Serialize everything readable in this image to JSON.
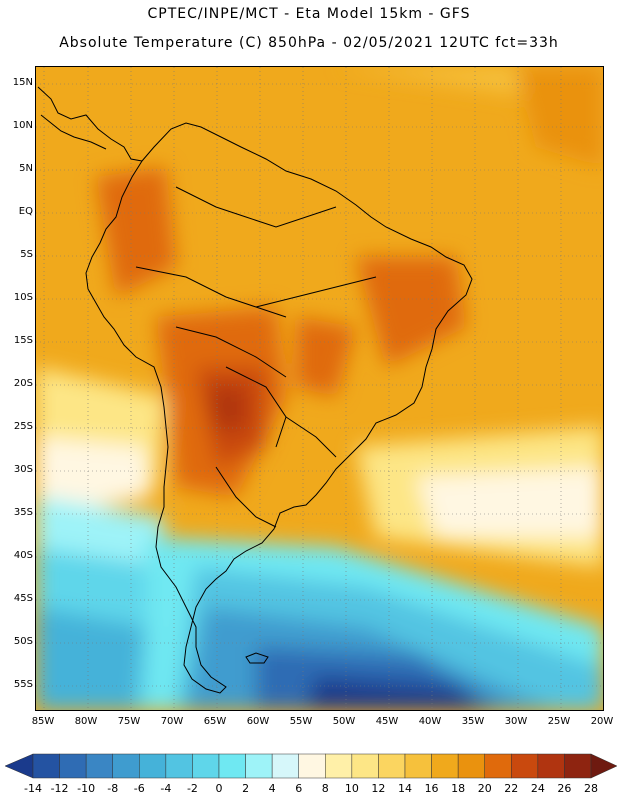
{
  "header": {
    "line1": "CPTEC/INPE/MCT  -   Eta Model 15km  -  GFS",
    "line2": "Absolute Temperature (C) 850hPa - 02/05/2021 12UTC fct=33h"
  },
  "axes": {
    "lat_labels": [
      "15N",
      "10N",
      "5N",
      "EQ",
      "5S",
      "10S",
      "15S",
      "20S",
      "25S",
      "30S",
      "35S",
      "40S",
      "45S",
      "50S",
      "55S"
    ],
    "lon_labels": [
      "85W",
      "80W",
      "75W",
      "70W",
      "65W",
      "60W",
      "55W",
      "50W",
      "45W",
      "40W",
      "35W",
      "30W",
      "25W",
      "20W"
    ]
  },
  "legend": {
    "labels": [
      "-14",
      "-12",
      "-10",
      "-8",
      "-6",
      "-4",
      "-2",
      "0",
      "2",
      "4",
      "6",
      "8",
      "10",
      "12",
      "14",
      "16",
      "18",
      "20",
      "22",
      "24",
      "26",
      "28"
    ],
    "colors": [
      "#1a3a8c",
      "#2453a2",
      "#2f6cb4",
      "#3a86c4",
      "#3f9ccf",
      "#45b2d9",
      "#52c4e2",
      "#5fd6ea",
      "#6fe8f2",
      "#9ef3f8",
      "#d6f7fa",
      "#fff7e2",
      "#fff0a8",
      "#fde686",
      "#fbd560",
      "#f6c13c",
      "#f0a91c",
      "#ea920e",
      "#e06a0c",
      "#c9490e",
      "#b03410",
      "#8e2410",
      "#6e1a10"
    ]
  }
}
